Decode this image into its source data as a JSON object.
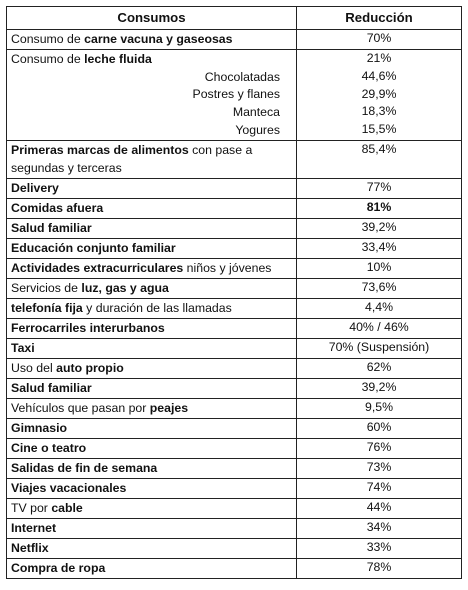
{
  "table": {
    "headers": [
      "Consumos",
      "Reducción"
    ],
    "rows": [
      {
        "pre": "Consumo de ",
        "bold": "carne vacuna y gaseosas",
        "post": "",
        "value": "70%"
      },
      {
        "pre": "Consumo de ",
        "bold": "leche fluida",
        "post": "",
        "value": "21%",
        "subitems": [
          {
            "label": "Chocolatadas",
            "value": "44,6%"
          },
          {
            "label": "Postres y flanes",
            "value": "29,9%"
          },
          {
            "label": "Manteca",
            "value": "18,3%"
          },
          {
            "label": "Yogures",
            "value": "15,5%"
          }
        ]
      },
      {
        "pre": "",
        "bold": "Primeras marcas de alimentos",
        "post": " con pase a segundas y terceras",
        "value": "85,4%"
      },
      {
        "pre": "",
        "bold": "Delivery",
        "post": "",
        "value": "77%"
      },
      {
        "pre": "",
        "bold": "Comidas afuera",
        "post": "",
        "value": "81%",
        "value_bold": true
      },
      {
        "pre": "",
        "bold": "Salud familiar",
        "post": "",
        "value": "39,2%"
      },
      {
        "pre": "",
        "bold": "Educación conjunto familiar",
        "post": "",
        "value": "33,4%"
      },
      {
        "pre": "",
        "bold": "Actividades extracurriculares",
        "post": " niños y jóvenes",
        "value": "10%"
      },
      {
        "pre": "Servicios de ",
        "bold": "luz, gas y agua",
        "post": "",
        "value": "73,6%"
      },
      {
        "pre": "",
        "bold": "telefonía fija",
        "post": " y duración de las llamadas",
        "value": "4,4%"
      },
      {
        "pre": "",
        "bold": "Ferrocarriles interurbanos",
        "post": "",
        "value": "40% / 46%"
      },
      {
        "pre": "",
        "bold": "Taxi",
        "post": "",
        "value": "70% (Suspensión)"
      },
      {
        "pre": "Uso del ",
        "bold": "auto propio",
        "post": "",
        "value": "62%"
      },
      {
        "pre": "",
        "bold": "Salud familiar",
        "post": "",
        "value": "39,2%"
      },
      {
        "pre": "Vehículos que pasan por ",
        "bold": "peajes",
        "post": "",
        "value": "9,5%"
      },
      {
        "pre": "",
        "bold": "Gimnasio",
        "post": "",
        "value": "60%"
      },
      {
        "pre": "",
        "bold": "Cine o teatro",
        "post": "",
        "value": "76%"
      },
      {
        "pre": "",
        "bold": "Salidas de fin de semana",
        "post": "",
        "value": "73%"
      },
      {
        "pre": "",
        "bold": "Viajes vacacionales",
        "post": "",
        "value": "74%"
      },
      {
        "pre": "TV por ",
        "bold": "cable",
        "post": "",
        "value": "44%"
      },
      {
        "pre": "",
        "bold": "Internet",
        "post": "",
        "value": "34%"
      },
      {
        "pre": "",
        "bold": "Netflix",
        "post": "",
        "value": "33%"
      },
      {
        "pre": "",
        "bold": "Compra de ropa",
        "post": "",
        "value": "78%"
      }
    ]
  }
}
